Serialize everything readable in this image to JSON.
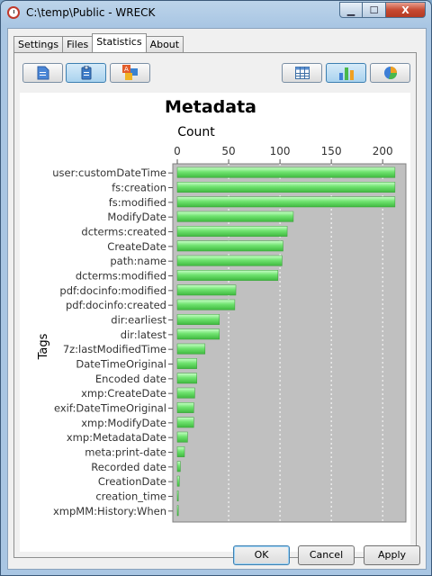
{
  "window": {
    "title": "C:\\temp\\Public - WRECK",
    "min_symbol": "▁",
    "max_symbol": "☐",
    "close_symbol": "X"
  },
  "tabs": [
    {
      "label": "Settings",
      "active": false
    },
    {
      "label": "Files",
      "active": false
    },
    {
      "label": "Statistics",
      "active": true
    },
    {
      "label": "About",
      "active": false
    }
  ],
  "toolbar": {
    "left_icons": [
      "document-icon",
      "clipboard-icon",
      "abc-icon"
    ],
    "right_icons": [
      "table-icon",
      "bar-chart-icon",
      "pie-chart-icon"
    ],
    "pressed_left": "clipboard-icon",
    "pressed_right": "bar-chart-icon"
  },
  "buttons": {
    "ok": "OK",
    "cancel": "Cancel",
    "apply": "Apply"
  },
  "chart_data": {
    "type": "bar",
    "orientation": "horizontal",
    "title": "Metadata",
    "xlabel": "Count",
    "ylabel": "Tags",
    "xlim": [
      0,
      220
    ],
    "xticks": [
      0,
      50,
      100,
      150,
      200
    ],
    "grid": true,
    "bar_color": "#6fe36f",
    "plot_background": "#c0c0c0",
    "categories": [
      "user:customDateTime",
      "fs:creation",
      "fs:modified",
      "ModifyDate",
      "dcterms:created",
      "CreateDate",
      "path:name",
      "dcterms:modified",
      "pdf:docinfo:modified",
      "pdf:docinfo:created",
      "dir:earliest",
      "dir:latest",
      "7z:lastModifiedTime",
      "DateTimeOriginal",
      "Encoded date",
      "xmp:CreateDate",
      "exif:DateTimeOriginal",
      "xmp:ModifyDate",
      "xmp:MetadataDate",
      "meta:print-date",
      "Recorded date",
      "CreationDate",
      "creation_time",
      "xmpMM:History:When"
    ],
    "values": [
      212,
      212,
      212,
      113,
      107,
      103,
      102,
      98,
      57,
      56,
      41,
      41,
      27,
      19,
      19,
      17,
      16,
      16,
      10,
      7,
      3,
      2,
      1,
      1
    ]
  }
}
